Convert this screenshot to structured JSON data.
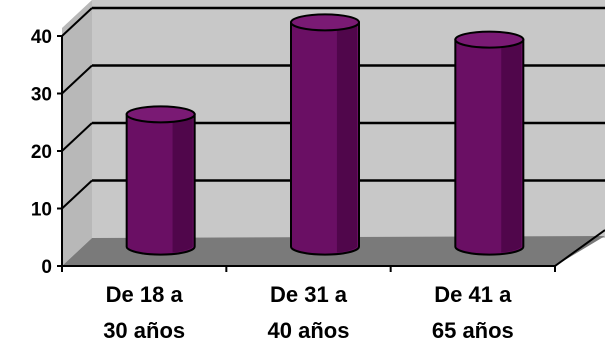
{
  "chart_data": {
    "type": "bar",
    "style": "3d-cylinder",
    "categories": [
      "De 18 a 30 años",
      "De 31 a 40 años",
      "De 41 a 65 años"
    ],
    "category_lines": [
      [
        "De 18 a",
        "30 años"
      ],
      [
        "De 31 a",
        "40 años"
      ],
      [
        "De 41 a",
        "65 años"
      ]
    ],
    "values": [
      23,
      39,
      36
    ],
    "ylim": [
      0,
      40
    ],
    "yticks": [
      0,
      10,
      20,
      30,
      40
    ],
    "grid": true,
    "legend": "none",
    "colors": {
      "bar": "#6a0f64",
      "bar_dark": "#3a0036",
      "bar_top": "#7a1a74",
      "wall": "#c8c8c8",
      "floor": "#7a7a7a",
      "gridline": "#000000"
    }
  }
}
